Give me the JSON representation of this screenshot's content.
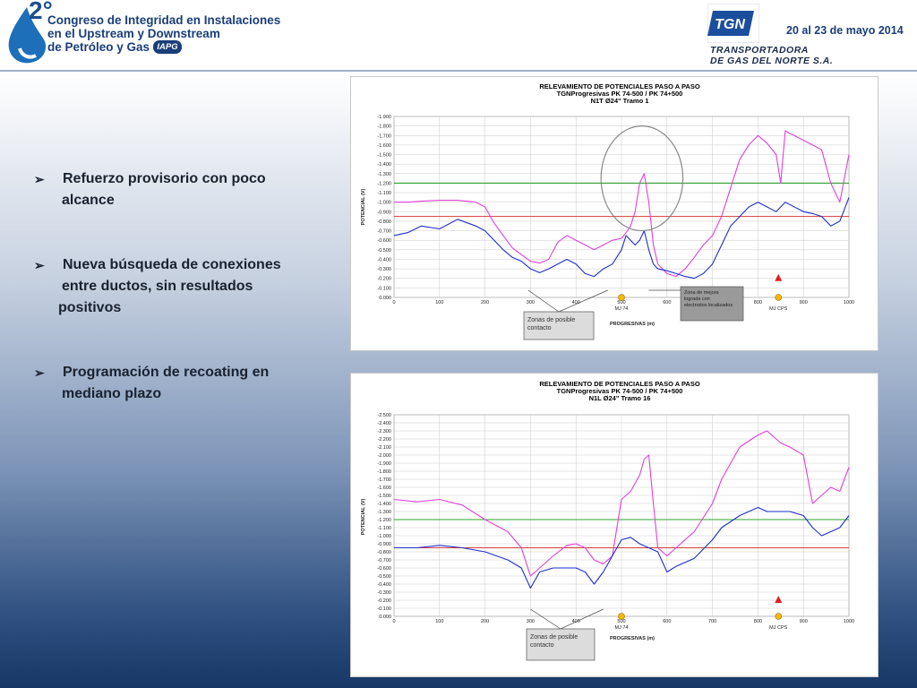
{
  "header": {
    "ordinal": "2°",
    "congress_lines": [
      "Congreso de Integridad en Instalaciones",
      "en el Upstream y Downstream",
      "de Petróleo y Gas"
    ],
    "iapg_badge": "IAPG",
    "date": "20 al 23 de mayo 2014",
    "tgn_lines": [
      "TRANSPORTADORA",
      "DE GAS DEL NORTE S.A."
    ],
    "tgn_mark": "TGN"
  },
  "colors": {
    "pink": "#e23fd9",
    "blue": "#1f2fc8",
    "green": "#2ea02e",
    "red": "#d43c3c",
    "marker_yellow": "#f5b800",
    "marker_red": "#e02020"
  },
  "bullets": [
    {
      "lines": [
        "Refuerzo provisorio con poco",
        "alcance"
      ]
    },
    {
      "lines": [
        "Nueva búsqueda de conexiones",
        "entre ductos, sin resultados",
        "positivos"
      ]
    },
    {
      "lines": [
        "Programación de recoating en",
        "mediano plazo"
      ]
    }
  ],
  "chart_data": [
    {
      "type": "line",
      "title_lines": [
        "RELEVAMIENTO  DE POTENCIALES  PASO A PASO",
        "TGNProgresivas  PK 74-500  / PK 74+500",
        "N1T  Ø24\"  Tramo 1"
      ],
      "xlabel": "PROGRESIVAS  (m)",
      "ylabel": "POTENCIAL  (V)",
      "xlim": [
        0,
        1000
      ],
      "ylim": [
        0,
        1.9
      ],
      "x_ticks": [
        "0",
        "100",
        "200",
        "300",
        "400",
        "500",
        "600",
        "700",
        "800",
        "900",
        "1000"
      ],
      "y_ticks": [
        "0.000",
        "-0.100",
        "-0.200",
        "-0.300",
        "-0.400",
        "-0.500",
        "-0.600",
        "-0.700",
        "-0.800",
        "-0.900",
        "-1.000",
        "-1.100",
        "-1.200",
        "-1.300",
        "-1.400",
        "-1.500",
        "-1.600",
        "-1.700",
        "-1.800",
        "-1.900"
      ],
      "grid": true,
      "reference_lines": [
        {
          "color": "green",
          "y": 1.2
        },
        {
          "color": "red",
          "y": 0.85
        }
      ],
      "series": [
        {
          "color": "pink",
          "x": [
            0,
            30,
            60,
            100,
            140,
            180,
            200,
            220,
            240,
            260,
            280,
            300,
            320,
            340,
            360,
            380,
            400,
            420,
            440,
            460,
            480,
            500,
            510,
            520,
            530,
            540,
            550,
            560,
            570,
            580,
            600,
            620,
            640,
            660,
            680,
            700,
            720,
            740,
            760,
            780,
            800,
            820,
            840,
            850,
            860,
            870,
            880,
            900,
            920,
            940,
            960,
            980,
            1000
          ],
          "y": [
            1.0,
            1.0,
            1.01,
            1.02,
            1.02,
            1.0,
            0.95,
            0.78,
            0.65,
            0.52,
            0.45,
            0.38,
            0.36,
            0.4,
            0.58,
            0.65,
            0.6,
            0.55,
            0.5,
            0.55,
            0.6,
            0.62,
            0.68,
            0.75,
            0.9,
            1.2,
            1.3,
            1.0,
            0.55,
            0.35,
            0.25,
            0.22,
            0.3,
            0.42,
            0.55,
            0.65,
            0.85,
            1.15,
            1.45,
            1.6,
            1.7,
            1.62,
            1.5,
            1.2,
            1.75,
            1.72,
            1.7,
            1.65,
            1.6,
            1.55,
            1.2,
            1.0,
            1.5
          ]
        },
        {
          "color": "blue",
          "x": [
            0,
            30,
            60,
            100,
            140,
            180,
            200,
            220,
            240,
            260,
            280,
            300,
            320,
            340,
            360,
            380,
            400,
            420,
            440,
            460,
            480,
            500,
            510,
            520,
            530,
            540,
            550,
            560,
            570,
            580,
            600,
            620,
            640,
            660,
            680,
            700,
            720,
            740,
            760,
            780,
            800,
            820,
            840,
            860,
            880,
            900,
            920,
            940,
            960,
            980,
            1000
          ],
          "y": [
            0.65,
            0.68,
            0.75,
            0.72,
            0.82,
            0.75,
            0.7,
            0.6,
            0.5,
            0.42,
            0.38,
            0.3,
            0.26,
            0.3,
            0.35,
            0.4,
            0.35,
            0.25,
            0.22,
            0.3,
            0.35,
            0.5,
            0.65,
            0.6,
            0.55,
            0.6,
            0.7,
            0.5,
            0.35,
            0.3,
            0.28,
            0.25,
            0.22,
            0.2,
            0.25,
            0.35,
            0.55,
            0.75,
            0.85,
            0.95,
            1.0,
            0.95,
            0.9,
            1.0,
            0.95,
            0.9,
            0.88,
            0.85,
            0.75,
            0.8,
            1.05
          ]
        }
      ],
      "markers": [
        {
          "shape": "circle",
          "color": "marker_yellow",
          "x": 500,
          "label": "MJ 74"
        },
        {
          "shape": "circle",
          "color": "marker_yellow",
          "x": 845,
          "label": "MJ CPS"
        },
        {
          "shape": "triangle",
          "color": "marker_red",
          "x": 845,
          "y": 0.2
        }
      ],
      "annotations": [
        {
          "kind": "callout",
          "style": "light",
          "lines": [
            "Zonas de posible",
            "contacto"
          ],
          "targets_x": [
            295,
            470
          ]
        },
        {
          "kind": "callout",
          "style": "dark",
          "lines": [
            "Zona de mejora",
            "lograda con",
            "electrodos localizados"
          ],
          "targets_x": [
            560
          ]
        },
        {
          "kind": "ellipse",
          "center_x": 545,
          "center_y": 1.25,
          "radius_x": 90,
          "radius_y": 0.55
        }
      ]
    },
    {
      "type": "line",
      "title_lines": [
        "RELEVAMIENTO  DE POTENCIALES  PASO A PASO",
        "TGNProgresivas  PK 74-500  / PK 74+500",
        "N1L  Ø24\"  Tramo 16"
      ],
      "xlabel": "PROGRESIVAS  (m)",
      "ylabel": "POTENCIAL  (V)",
      "xlim": [
        0,
        1000
      ],
      "ylim": [
        0,
        2.5
      ],
      "x_ticks": [
        "0",
        "100",
        "200",
        "300",
        "400",
        "500",
        "600",
        "700",
        "800",
        "900",
        "1000"
      ],
      "y_ticks": [
        "0.000",
        "-0.100",
        "-0.200",
        "-0.300",
        "-0.400",
        "-0.500",
        "-0.600",
        "-0.700",
        "-0.800",
        "-0.900",
        "-1.000",
        "-1.100",
        "-1.200",
        "-1.300",
        "-1.400",
        "-1.500",
        "-1.600",
        "-1.700",
        "-1.800",
        "-1.900",
        "-2.000",
        "-2.100",
        "-2.200",
        "-2.300",
        "-2.400",
        "-2.500"
      ],
      "grid": true,
      "reference_lines": [
        {
          "color": "green",
          "y": 1.2
        },
        {
          "color": "red",
          "y": 0.85
        }
      ],
      "series": [
        {
          "color": "pink",
          "x": [
            0,
            50,
            100,
            150,
            200,
            250,
            280,
            300,
            320,
            350,
            380,
            400,
            420,
            440,
            460,
            480,
            500,
            520,
            540,
            550,
            560,
            570,
            580,
            600,
            620,
            660,
            700,
            720,
            760,
            800,
            820,
            850,
            870,
            900,
            920,
            940,
            960,
            980,
            1000
          ],
          "y": [
            1.45,
            1.42,
            1.45,
            1.38,
            1.2,
            1.05,
            0.85,
            0.5,
            0.6,
            0.75,
            0.88,
            0.9,
            0.85,
            0.7,
            0.65,
            0.75,
            1.45,
            1.55,
            1.75,
            1.95,
            2.0,
            1.4,
            0.85,
            0.75,
            0.85,
            1.05,
            1.4,
            1.7,
            2.1,
            2.25,
            2.3,
            2.15,
            2.1,
            2.0,
            1.4,
            1.5,
            1.6,
            1.55,
            1.85
          ]
        },
        {
          "color": "blue",
          "x": [
            0,
            50,
            100,
            150,
            200,
            250,
            280,
            300,
            320,
            350,
            380,
            400,
            420,
            440,
            460,
            480,
            500,
            520,
            540,
            560,
            580,
            600,
            620,
            660,
            700,
            720,
            760,
            800,
            820,
            850,
            870,
            900,
            920,
            940,
            960,
            980,
            1000
          ],
          "y": [
            0.85,
            0.85,
            0.88,
            0.85,
            0.8,
            0.7,
            0.6,
            0.35,
            0.55,
            0.6,
            0.6,
            0.6,
            0.55,
            0.4,
            0.55,
            0.75,
            0.95,
            0.98,
            0.9,
            0.85,
            0.8,
            0.55,
            0.62,
            0.72,
            0.95,
            1.1,
            1.25,
            1.35,
            1.3,
            1.3,
            1.3,
            1.25,
            1.1,
            1.0,
            1.05,
            1.1,
            1.25
          ]
        }
      ],
      "markers": [
        {
          "shape": "circle",
          "color": "marker_yellow",
          "x": 500,
          "label": "MJ 74"
        },
        {
          "shape": "circle",
          "color": "marker_yellow",
          "x": 845,
          "label": "MJ CPS"
        },
        {
          "shape": "triangle",
          "color": "marker_red",
          "x": 845,
          "y": 0.2
        }
      ],
      "annotations": [
        {
          "kind": "callout",
          "style": "light",
          "lines": [
            "Zonas de posible",
            "contacto"
          ],
          "targets_x": [
            300,
            460
          ]
        }
      ]
    }
  ]
}
